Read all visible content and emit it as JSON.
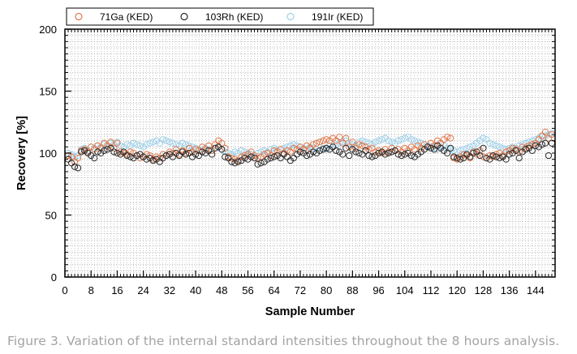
{
  "chart_data": {
    "type": "scatter",
    "xlabel": "Sample Number",
    "ylabel": "Recovery [%]",
    "xlim": [
      0,
      150
    ],
    "ylim": [
      0,
      200
    ],
    "x_ticks": [
      0,
      8,
      16,
      24,
      32,
      40,
      48,
      56,
      64,
      72,
      80,
      88,
      96,
      104,
      112,
      120,
      128,
      136,
      144
    ],
    "x_tick_labels": [
      "0",
      "8",
      "16",
      "24",
      "32",
      "40",
      "48",
      "56",
      "64",
      "72",
      "80",
      "88",
      "96",
      "104",
      "112",
      "120",
      "128",
      "136",
      "144"
    ],
    "y_ticks": [
      0,
      50,
      100,
      150,
      200
    ],
    "y_tick_labels": [
      "0",
      "50",
      "100",
      "150",
      "200"
    ],
    "grid": "dotted",
    "legend_position": "top",
    "marker": "open-circle",
    "series": [
      {
        "name": "71Ga (KED)",
        "color": "#e07a4f",
        "x": [
          1,
          2,
          3,
          4,
          5,
          6,
          7,
          8,
          9,
          10,
          11,
          12,
          13,
          14,
          15,
          16,
          17,
          18,
          19,
          20,
          21,
          22,
          23,
          24,
          25,
          26,
          27,
          28,
          29,
          30,
          31,
          32,
          33,
          34,
          35,
          36,
          37,
          38,
          39,
          40,
          41,
          42,
          43,
          44,
          45,
          46,
          47,
          48,
          49,
          50,
          51,
          52,
          53,
          54,
          55,
          56,
          57,
          58,
          59,
          60,
          61,
          62,
          63,
          64,
          65,
          66,
          67,
          68,
          69,
          70,
          71,
          72,
          73,
          74,
          75,
          76,
          77,
          78,
          79,
          80,
          81,
          82,
          83,
          84,
          85,
          86,
          87,
          88,
          89,
          90,
          91,
          92,
          93,
          94,
          95,
          96,
          97,
          98,
          99,
          100,
          101,
          102,
          103,
          104,
          105,
          106,
          107,
          108,
          109,
          110,
          111,
          112,
          113,
          114,
          115,
          116,
          117,
          118,
          119,
          120,
          121,
          122,
          123,
          124,
          125,
          126,
          127,
          128,
          129,
          130,
          131,
          132,
          133,
          134,
          135,
          136,
          137,
          138,
          139,
          140,
          141,
          142,
          143,
          144,
          145,
          146,
          147,
          148,
          149
        ],
        "values": [
          98,
          97,
          93,
          96,
          102,
          103,
          101,
          105,
          103,
          106,
          104,
          108,
          106,
          109,
          104,
          108,
          101,
          100,
          99,
          101,
          100,
          98,
          96,
          97,
          99,
          98,
          95,
          97,
          96,
          99,
          98,
          101,
          100,
          103,
          99,
          102,
          100,
          104,
          101,
          103,
          102,
          105,
          103,
          106,
          102,
          107,
          110,
          108,
          104,
          97,
          96,
          95,
          94,
          97,
          98,
          99,
          101,
          98,
          96,
          97,
          99,
          100,
          98,
          102,
          101,
          103,
          100,
          102,
          101,
          104,
          103,
          105,
          103,
          106,
          104,
          107,
          108,
          109,
          110,
          111,
          110,
          112,
          110,
          113,
          108,
          112,
          105,
          109,
          104,
          107,
          106,
          105,
          103,
          104,
          101,
          102,
          100,
          103,
          101,
          104,
          102,
          103,
          101,
          104,
          102,
          105,
          103,
          106,
          104,
          107,
          105,
          108,
          106,
          110,
          108,
          111,
          113,
          112,
          96,
          95,
          97,
          99,
          98,
          96,
          101,
          99,
          102,
          97,
          96,
          98,
          97,
          99,
          100,
          98,
          101,
          102,
          104,
          103,
          101,
          105,
          104,
          106,
          107,
          108,
          111,
          114,
          117,
          112,
          115
        ]
      },
      {
        "name": "103Rh (KED)",
        "color": "#2a2a2a",
        "x": [
          1,
          2,
          3,
          4,
          5,
          6,
          7,
          8,
          9,
          10,
          11,
          12,
          13,
          14,
          15,
          16,
          17,
          18,
          19,
          20,
          21,
          22,
          23,
          24,
          25,
          26,
          27,
          28,
          29,
          30,
          31,
          32,
          33,
          34,
          35,
          36,
          37,
          38,
          39,
          40,
          41,
          42,
          43,
          44,
          45,
          46,
          47,
          48,
          49,
          50,
          51,
          52,
          53,
          54,
          55,
          56,
          57,
          58,
          59,
          60,
          61,
          62,
          63,
          64,
          65,
          66,
          67,
          68,
          69,
          70,
          71,
          72,
          73,
          74,
          75,
          76,
          77,
          78,
          79,
          80,
          81,
          82,
          83,
          84,
          85,
          86,
          87,
          88,
          89,
          90,
          91,
          92,
          93,
          94,
          95,
          96,
          97,
          98,
          99,
          100,
          101,
          102,
          103,
          104,
          105,
          106,
          107,
          108,
          109,
          110,
          111,
          112,
          113,
          114,
          115,
          116,
          117,
          118,
          119,
          120,
          121,
          122,
          123,
          124,
          125,
          126,
          127,
          128,
          129,
          130,
          131,
          132,
          133,
          134,
          135,
          136,
          137,
          138,
          139,
          140,
          141,
          142,
          143,
          144,
          145,
          146,
          147,
          148,
          149
        ],
        "values": [
          95,
          92,
          89,
          88,
          101,
          102,
          100,
          98,
          96,
          101,
          100,
          102,
          103,
          104,
          101,
          100,
          99,
          101,
          98,
          97,
          96,
          98,
          99,
          97,
          95,
          96,
          94,
          95,
          93,
          96,
          98,
          99,
          97,
          100,
          98,
          101,
          99,
          100,
          97,
          99,
          98,
          101,
          100,
          102,
          99,
          104,
          105,
          103,
          97,
          96,
          93,
          92,
          93,
          94,
          96,
          95,
          97,
          96,
          91,
          92,
          93,
          95,
          96,
          97,
          98,
          96,
          99,
          97,
          94,
          96,
          99,
          101,
          100,
          98,
          99,
          101,
          100,
          102,
          103,
          104,
          103,
          105,
          102,
          101,
          99,
          104,
          98,
          103,
          101,
          100,
          99,
          102,
          98,
          97,
          98,
          100,
          101,
          99,
          100,
          101,
          102,
          99,
          98,
          99,
          100,
          98,
          97,
          99,
          101,
          103,
          105,
          104,
          103,
          106,
          104,
          102,
          100,
          104,
          97,
          96,
          95,
          96,
          99,
          97,
          100,
          101,
          98,
          104,
          96,
          95,
          98,
          97,
          96,
          97,
          95,
          99,
          100,
          102,
          96,
          101,
          103,
          104,
          102,
          106,
          105,
          107,
          108,
          98,
          108
        ]
      },
      {
        "name": "191Ir (KED)",
        "color": "#9fd0e8",
        "x": [
          1,
          2,
          3,
          4,
          5,
          6,
          7,
          8,
          9,
          10,
          11,
          12,
          13,
          14,
          15,
          16,
          17,
          18,
          19,
          20,
          21,
          22,
          23,
          24,
          25,
          26,
          27,
          28,
          29,
          30,
          31,
          32,
          33,
          34,
          35,
          36,
          37,
          38,
          39,
          40,
          41,
          42,
          43,
          44,
          45,
          46,
          47,
          48,
          49,
          50,
          51,
          52,
          53,
          54,
          55,
          56,
          57,
          58,
          59,
          60,
          61,
          62,
          63,
          64,
          65,
          66,
          67,
          68,
          69,
          70,
          71,
          72,
          73,
          74,
          75,
          76,
          77,
          78,
          79,
          80,
          81,
          82,
          83,
          84,
          85,
          86,
          87,
          88,
          89,
          90,
          91,
          92,
          93,
          94,
          95,
          96,
          97,
          98,
          99,
          100,
          101,
          102,
          103,
          104,
          105,
          106,
          107,
          108,
          109,
          110,
          111,
          112,
          113,
          114,
          115,
          116,
          117,
          118,
          119,
          120,
          121,
          122,
          123,
          124,
          125,
          126,
          127,
          128,
          129,
          130,
          131,
          132,
          133,
          134,
          135,
          136,
          137,
          138,
          139,
          140,
          141,
          142,
          143,
          144,
          145,
          146,
          147,
          148,
          149
        ],
        "values": [
          100,
          99,
          97,
          98,
          103,
          104,
          102,
          105,
          104,
          106,
          105,
          107,
          106,
          108,
          107,
          109,
          106,
          105,
          107,
          106,
          108,
          107,
          106,
          105,
          107,
          108,
          109,
          110,
          108,
          111,
          110,
          109,
          108,
          107,
          106,
          108,
          107,
          106,
          105,
          104,
          103,
          105,
          104,
          103,
          102,
          104,
          105,
          103,
          101,
          100,
          99,
          101,
          100,
          102,
          101,
          100,
          99,
          98,
          100,
          101,
          102,
          101,
          103,
          104,
          102,
          103,
          104,
          105,
          106,
          107,
          106,
          105,
          104,
          103,
          105,
          104,
          103,
          102,
          104,
          103,
          106,
          105,
          107,
          108,
          109,
          110,
          108,
          107,
          106,
          109,
          110,
          109,
          108,
          107,
          109,
          110,
          111,
          112,
          110,
          109,
          108,
          110,
          111,
          112,
          113,
          111,
          110,
          109,
          108,
          107,
          106,
          105,
          104,
          103,
          105,
          106,
          104,
          103,
          102,
          101,
          102,
          103,
          104,
          105,
          106,
          108,
          110,
          112,
          111,
          108,
          107,
          106,
          105,
          104,
          103,
          104,
          105,
          104,
          106,
          107,
          108,
          109,
          110,
          111,
          112,
          113,
          114,
          115,
          116
        ]
      }
    ]
  },
  "caption": "Figure 3. Variation of the internal standard intensities throughout the 8 hours analysis."
}
